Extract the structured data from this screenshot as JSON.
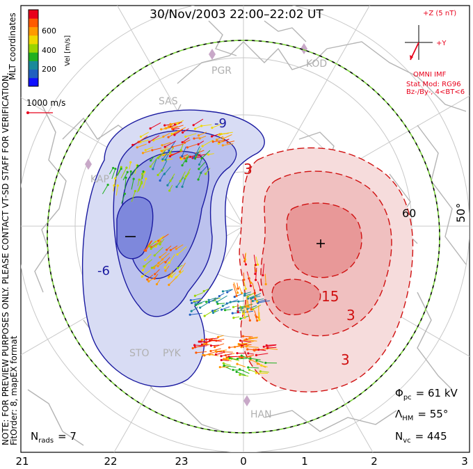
{
  "title": "30/Nov/2003 22:00–22:02 UT",
  "side": {
    "mlt": "MLT coordinates",
    "preview": "NOTE: FOR PREVIEW PURPOSES ONLY. PLEASE CONTACT VT-SD STAFF FOR VERIFICATION.",
    "fit": "FitOrder: 8, mapEX format"
  },
  "colorbar": {
    "label": "Vel [m/s]",
    "ticks": [
      "600",
      "400",
      "200"
    ],
    "colors": [
      "#e8001b",
      "#ff5a00",
      "#ff9a00",
      "#f0d800",
      "#9ad400",
      "#20b020",
      "#1a8a9a",
      "#2060c0",
      "#1010ff"
    ]
  },
  "ref_vector": "1000 m/s",
  "imf": {
    "z": "+Z (5 nT)",
    "y": "+Y",
    "omni": "OMNI IMF",
    "model": "Stat Mod: RG96",
    "cond": "Bz-/By-, 4<BT<6"
  },
  "stations": [
    "PGR",
    "KOD",
    "SAS",
    "KAP",
    "STO",
    "PYK",
    "HAN"
  ],
  "contours": {
    "neg": [
      "-9",
      "-6"
    ],
    "pos": [
      "3",
      "15",
      "3",
      "3"
    ]
  },
  "lat_label": "50°",
  "lat_label2": "60",
  "stats": {
    "phi_sym": "Φ",
    "phi_sub": "pc",
    "phi_val": "= 61 kV",
    "lam_sym": "Λ",
    "lam_sub": "HM",
    "lam_val": "= 55°",
    "nvc_sym": "N",
    "nvc_sub": "vc",
    "nvc_val": "= 445",
    "nrads_sym": "N",
    "nrads_sub": "rads",
    "nrads_val": "= 7"
  },
  "x_ticks": [
    "21",
    "22",
    "23",
    "0",
    "1",
    "2",
    "3"
  ]
}
